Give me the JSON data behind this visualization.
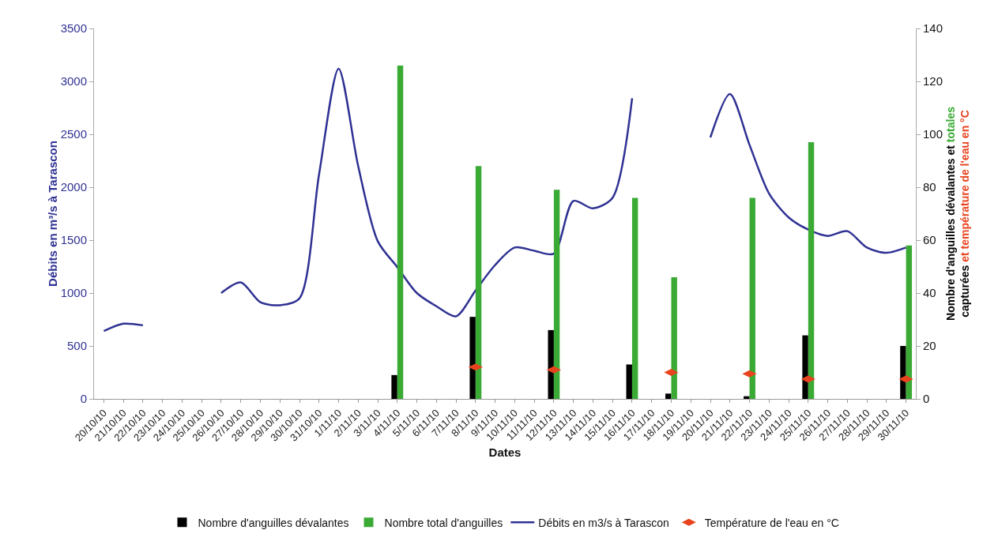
{
  "chart_data": {
    "type": "bar",
    "xlabel": "Dates",
    "ylabel": "Débits en m³/s à Tarascon",
    "y2label": [
      "Nombre d'anguilles dévalantes et ",
      "totales",
      "\ncapturées ",
      "et température de l'eau en °C"
    ],
    "categories": [
      "20/10/10",
      "21/10/10",
      "22/10/10",
      "23/10/10",
      "24/10/10",
      "25/10/10",
      "26/10/10",
      "27/10/10",
      "28/10/10",
      "29/10/10",
      "30/10/10",
      "31/10/10",
      "1/11/10",
      "2/11/10",
      "3/11/10",
      "4/11/10",
      "5/11/10",
      "6/11/10",
      "7/11/10",
      "8/11/10",
      "9/11/10",
      "10/11/10",
      "11/11/10",
      "12/11/10",
      "13/11/10",
      "14/11/10",
      "15/11/10",
      "16/11/10",
      "17/11/10",
      "18/11/10",
      "19/11/10",
      "20/11/10",
      "21/11/10",
      "22/11/10",
      "23/11/10",
      "24/11/10",
      "25/11/10",
      "26/11/10",
      "27/11/10",
      "28/11/10",
      "29/11/10",
      "30/11/10"
    ],
    "series": [
      {
        "name": "Nombre d'anguilles dévalantes",
        "axis": "y2",
        "color": "#000000",
        "values": [
          null,
          null,
          null,
          null,
          null,
          null,
          null,
          null,
          null,
          null,
          null,
          null,
          null,
          null,
          null,
          9,
          null,
          null,
          null,
          31,
          null,
          null,
          null,
          26,
          null,
          null,
          null,
          13,
          null,
          2,
          null,
          null,
          null,
          1,
          null,
          null,
          24,
          null,
          null,
          null,
          null,
          20
        ]
      },
      {
        "name": "Nombre total d'anguilles",
        "axis": "y2",
        "color": "#3aaa35",
        "values": [
          null,
          null,
          null,
          null,
          null,
          null,
          null,
          null,
          null,
          null,
          null,
          null,
          null,
          null,
          null,
          126,
          null,
          null,
          null,
          88,
          null,
          null,
          null,
          79,
          null,
          null,
          null,
          76,
          null,
          46,
          null,
          null,
          null,
          76,
          null,
          null,
          97,
          null,
          null,
          null,
          null,
          58
        ]
      },
      {
        "name": "Débits en m3/s à Tarascon",
        "type": "line",
        "axis": "y",
        "color": "#2e3192",
        "values": [
          640,
          710,
          695,
          null,
          null,
          null,
          1000,
          1100,
          913,
          885,
          950,
          2120,
          3120,
          2200,
          1490,
          1245,
          1000,
          875,
          780,
          1025,
          1265,
          1430,
          1400,
          1372,
          1870,
          1800,
          1900,
          2840,
          null,
          null,
          null,
          2470,
          2880,
          2400,
          1940,
          1715,
          1600,
          1540,
          1585,
          1430,
          1380,
          1430
        ]
      },
      {
        "name": "Température de l'eau en °C",
        "type": "scatter",
        "axis": "y2",
        "color": "#e8431e",
        "values": [
          null,
          null,
          null,
          null,
          null,
          null,
          null,
          null,
          null,
          null,
          null,
          null,
          null,
          null,
          null,
          null,
          null,
          null,
          null,
          12,
          null,
          null,
          null,
          11,
          null,
          null,
          null,
          null,
          null,
          10,
          null,
          null,
          null,
          9.5,
          null,
          null,
          7.5,
          null,
          null,
          null,
          null,
          7.5
        ]
      }
    ],
    "ylim": [
      0,
      3500
    ],
    "yticks": [
      0,
      500,
      1000,
      1500,
      2000,
      2500,
      3000,
      3500
    ],
    "y2lim": [
      0,
      140
    ],
    "y2ticks": [
      0,
      20,
      40,
      60,
      80,
      100,
      120,
      140
    ],
    "grid": false,
    "legend": "bottom"
  }
}
